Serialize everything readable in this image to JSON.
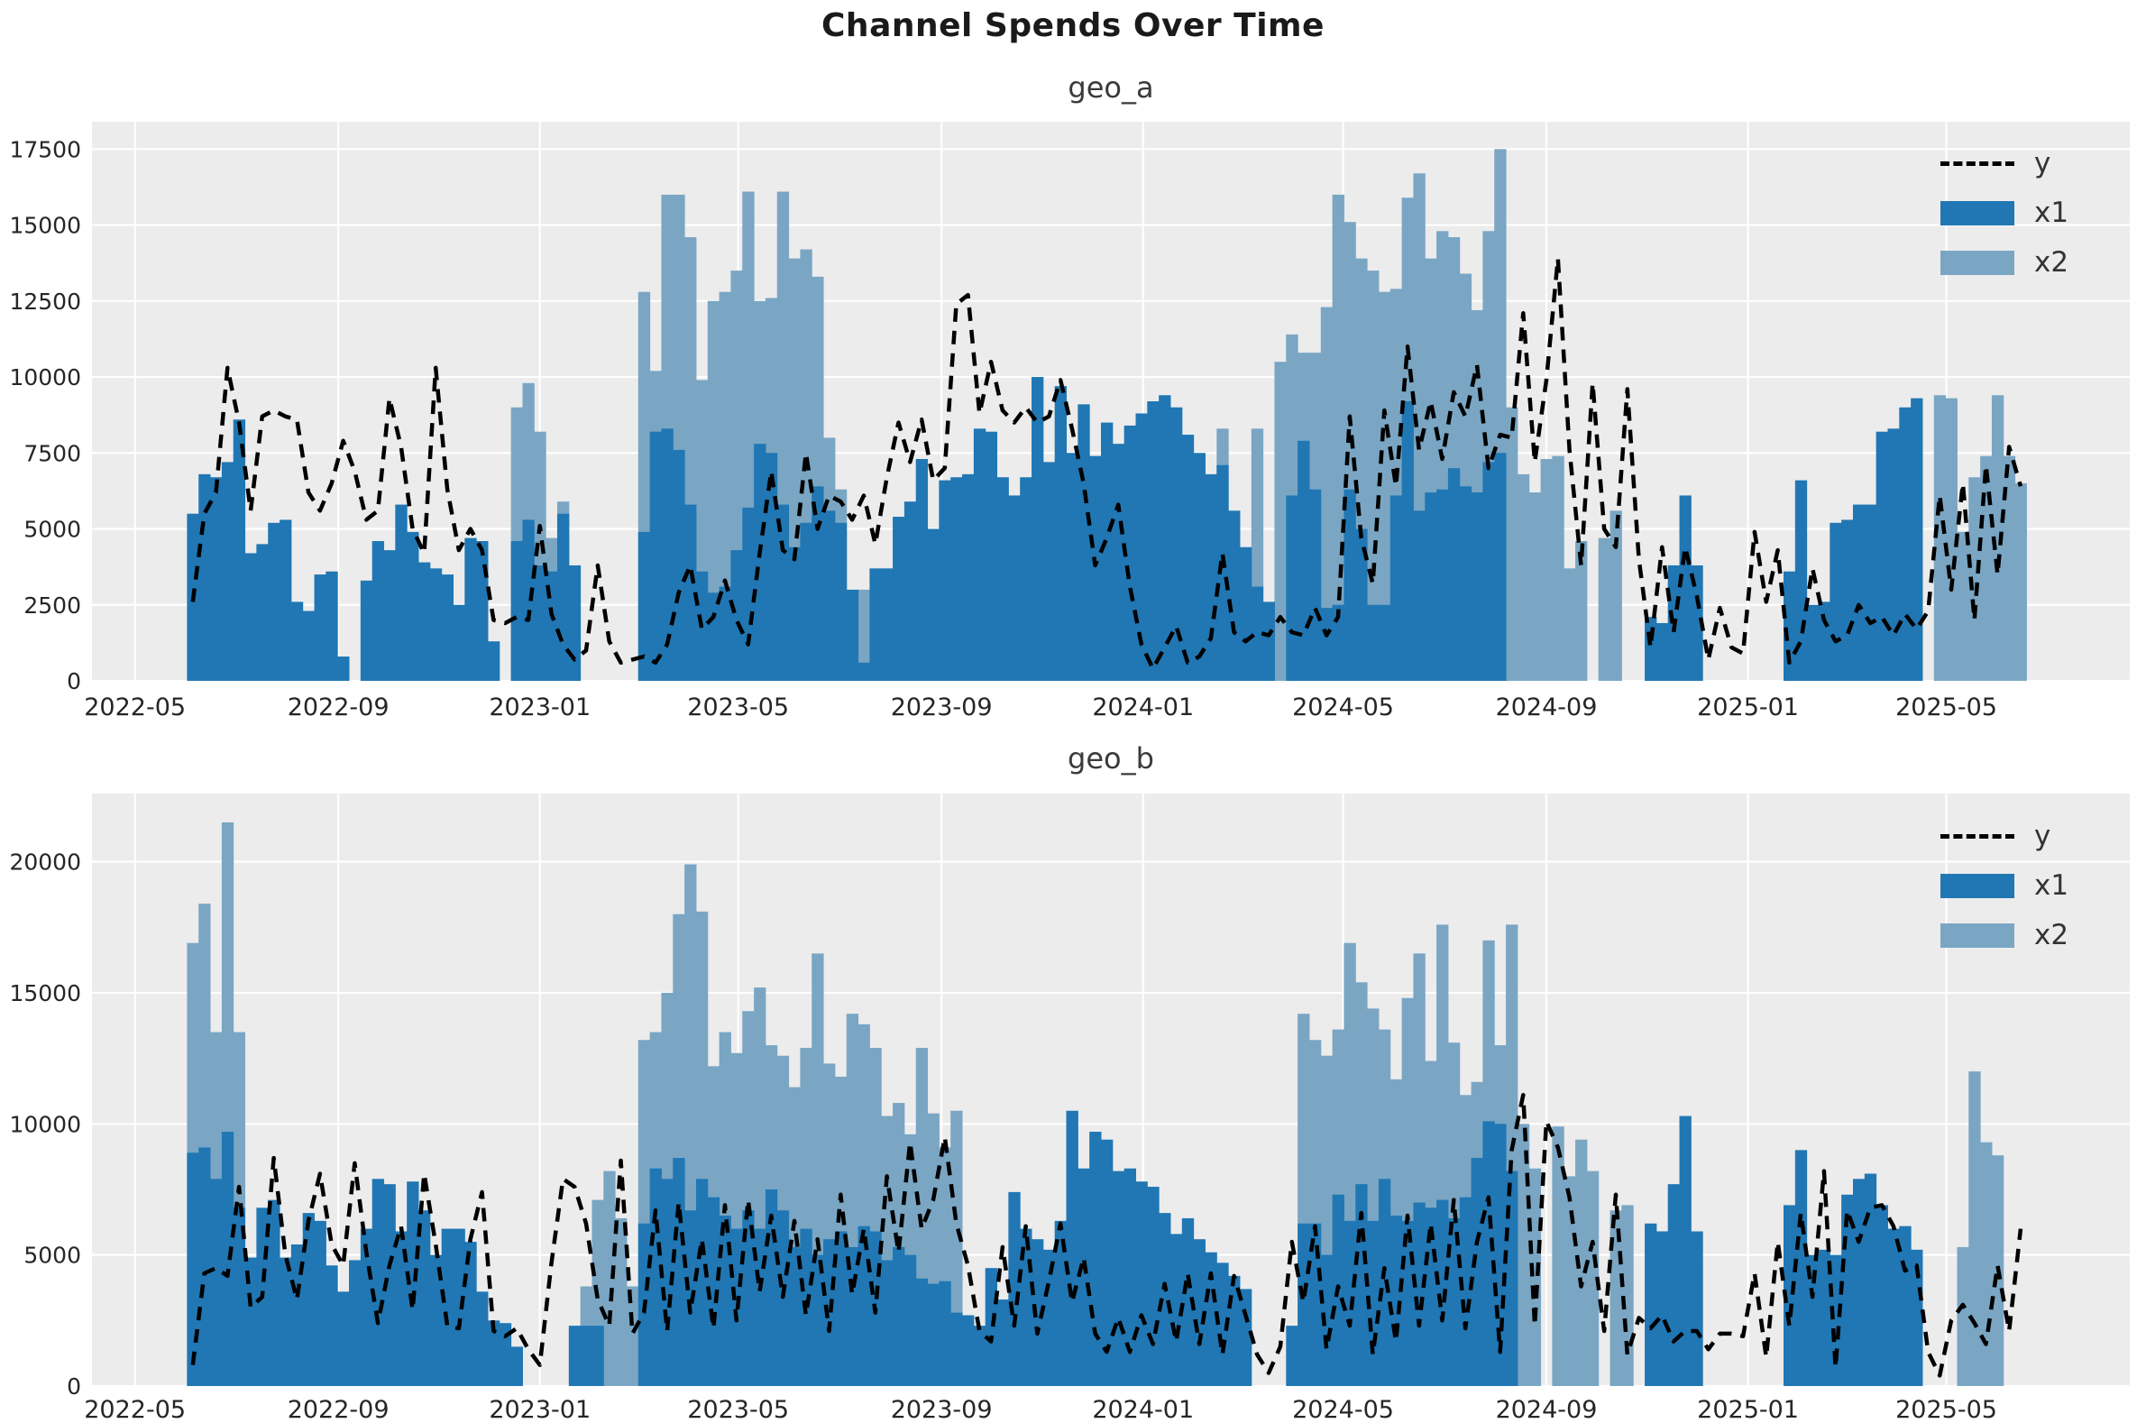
{
  "title": "Channel Spends Over Time",
  "legend": {
    "y": "y",
    "x1": "x1",
    "x2": "x2"
  },
  "colors": {
    "x1": "#2077b4",
    "x2": "#7aa6c4",
    "y_line": "#000000",
    "plot_bg": "#ececec",
    "grid": "#ffffff",
    "tick_text": "#262626"
  },
  "x_axis": {
    "tick_labels": [
      "2022-05",
      "2022-09",
      "2023-01",
      "2023-05",
      "2023-09",
      "2024-01",
      "2024-05",
      "2024-09",
      "2025-01",
      "2025-05"
    ],
    "tick_dates": [
      "2022-05-01",
      "2022-09-01",
      "2023-01-01",
      "2023-05-01",
      "2023-09-01",
      "2024-01-01",
      "2024-05-01",
      "2024-09-01",
      "2025-01-01",
      "2025-05-01"
    ],
    "domain": [
      "2022-04-05",
      "2025-08-20"
    ]
  },
  "series_start_date": "2022-06-05",
  "series_freq_days": 7,
  "chart_data": [
    {
      "type": "bar",
      "title": "geo_a",
      "ylim": [
        0,
        18400
      ],
      "y_ticks": [
        0,
        2500,
        5000,
        7500,
        10000,
        12500,
        15000,
        17500
      ],
      "y_tick_labels": [
        "0",
        "2500",
        "5000",
        "7500",
        "10000",
        "12500",
        "15000",
        "17500"
      ],
      "legend_position": "upper right",
      "grid": true,
      "series": [
        {
          "name": "y",
          "kind": "line",
          "values": [
            2600,
            5500,
            6200,
            10300,
            8500,
            5600,
            8700,
            8900,
            8700,
            8600,
            6200,
            5600,
            6500,
            7900,
            6900,
            5300,
            5600,
            9300,
            7700,
            5000,
            4200,
            10300,
            6300,
            4300,
            5000,
            4300,
            2000,
            1900,
            2100,
            2000,
            5100,
            2200,
            1200,
            700,
            1000,
            3800,
            1300,
            600,
            700,
            800,
            600,
            1200,
            2900,
            3800,
            1700,
            2100,
            3300,
            2000,
            1200,
            4200,
            6900,
            4300,
            4000,
            7500,
            5000,
            6100,
            5900,
            5300,
            6100,
            4500,
            6700,
            8500,
            7200,
            8600,
            6600,
            7000,
            12400,
            12700,
            8800,
            10500,
            8900,
            8500,
            9000,
            8500,
            8700,
            9900,
            8300,
            6500,
            3800,
            4700,
            5800,
            3100,
            1200,
            400,
            1100,
            1800,
            600,
            800,
            1400,
            4200,
            1600,
            1300,
            1600,
            1500,
            2100,
            1600,
            1500,
            2400,
            1500,
            2100,
            8700,
            4700,
            3200,
            8900,
            6400,
            11000,
            7600,
            9200,
            7300,
            9500,
            8700,
            10400,
            7000,
            8100,
            8000,
            12100,
            7200,
            9900,
            13900,
            7600,
            3800,
            9800,
            5000,
            4400,
            9600,
            4000,
            1100,
            4400,
            1600,
            4400,
            2800,
            700,
            2400,
            1100,
            900,
            4900,
            2600,
            4300,
            600,
            1300,
            3700,
            2000,
            1300,
            1500,
            2500,
            1900,
            2100,
            1500,
            2200,
            1700,
            2300,
            6100,
            3000,
            6500,
            2000,
            7100,
            3500,
            7700,
            6400
          ]
        },
        {
          "name": "x1",
          "kind": "bar",
          "values": [
            5500,
            6800,
            6700,
            7200,
            8600,
            4200,
            4500,
            5200,
            5300,
            2600,
            2300,
            3500,
            3600,
            800,
            0,
            3300,
            4600,
            4300,
            5800,
            4900,
            3900,
            3700,
            3500,
            2500,
            4700,
            4600,
            1300,
            0,
            4600,
            5300,
            3800,
            3600,
            5500,
            3800,
            0,
            0,
            0,
            0,
            0,
            4900,
            8200,
            8300,
            7600,
            5800,
            3600,
            2900,
            3100,
            4300,
            5700,
            7800,
            7500,
            5800,
            4400,
            5200,
            6400,
            5600,
            5200,
            3000,
            600,
            3700,
            3700,
            5400,
            5900,
            7300,
            5000,
            6600,
            6700,
            6800,
            8300,
            8200,
            6700,
            6100,
            6700,
            10000,
            7200,
            9700,
            7500,
            9100,
            7400,
            8500,
            7800,
            8400,
            8800,
            9200,
            9400,
            9000,
            8100,
            7500,
            6800,
            7100,
            5600,
            4400,
            3100,
            2600,
            0,
            6100,
            7900,
            6300,
            2400,
            2500,
            6300,
            5000,
            2500,
            2500,
            6100,
            9200,
            5600,
            6200,
            6300,
            7000,
            6400,
            6200,
            7200,
            7500,
            0,
            0,
            0,
            0,
            0,
            0,
            0,
            0,
            0,
            0,
            0,
            0,
            2100,
            1900,
            3800,
            6100,
            3800,
            0,
            0,
            0,
            0,
            0,
            0,
            0,
            3600,
            6600,
            2500,
            2600,
            5200,
            5300,
            5800,
            5800,
            8200,
            8300,
            9000,
            9300,
            0,
            0,
            0,
            0,
            0,
            0,
            0,
            0,
            0
          ]
        },
        {
          "name": "x2",
          "kind": "bar",
          "values": [
            0,
            0,
            0,
            0,
            0,
            0,
            0,
            0,
            0,
            0,
            0,
            0,
            0,
            0,
            0,
            0,
            0,
            0,
            0,
            0,
            0,
            0,
            0,
            0,
            0,
            0,
            0,
            0,
            9000,
            9800,
            8200,
            4700,
            5900,
            0,
            0,
            0,
            0,
            0,
            0,
            12800,
            10200,
            16000,
            16000,
            14600,
            9900,
            12500,
            12800,
            13500,
            16100,
            12500,
            12600,
            16100,
            13900,
            14200,
            13300,
            8000,
            6300,
            1500,
            3000,
            0,
            0,
            0,
            0,
            0,
            0,
            0,
            0,
            0,
            0,
            0,
            0,
            0,
            0,
            0,
            0,
            0,
            0,
            0,
            0,
            0,
            0,
            0,
            0,
            0,
            0,
            0,
            0,
            0,
            0,
            8300,
            0,
            0,
            8300,
            0,
            10500,
            11400,
            10800,
            10800,
            12300,
            16000,
            15100,
            13900,
            13500,
            12800,
            12900,
            15900,
            16700,
            13900,
            14800,
            14600,
            13400,
            12200,
            14800,
            17500,
            9000,
            6800,
            6200,
            7300,
            7400,
            3700,
            4600,
            0,
            4700,
            5600,
            0,
            0,
            0,
            0,
            0,
            0,
            0,
            0,
            0,
            0,
            0,
            0,
            0,
            0,
            0,
            0,
            0,
            0,
            0,
            0,
            0,
            0,
            0,
            0,
            0,
            0,
            0,
            9400,
            9300,
            4900,
            6700,
            7400,
            9400,
            7400,
            6500
          ]
        }
      ]
    },
    {
      "type": "bar",
      "title": "geo_b",
      "ylim": [
        0,
        22600
      ],
      "y_ticks": [
        0,
        5000,
        10000,
        15000,
        20000
      ],
      "y_tick_labels": [
        "0",
        "5000",
        "10000",
        "15000",
        "20000"
      ],
      "legend_position": "upper right",
      "grid": true,
      "series": [
        {
          "name": "y",
          "kind": "line",
          "values": [
            800,
            4300,
            4500,
            4200,
            7600,
            3000,
            3400,
            8700,
            5000,
            3300,
            6300,
            8100,
            5400,
            4600,
            8500,
            5100,
            2400,
            4600,
            6100,
            2900,
            8100,
            5400,
            2300,
            2200,
            5600,
            7400,
            2100,
            1900,
            2200,
            1400,
            800,
            4700,
            7900,
            7600,
            6200,
            3300,
            2300,
            8600,
            2000,
            2800,
            6700,
            2100,
            7000,
            2800,
            5600,
            2200,
            6900,
            2500,
            7100,
            3600,
            6500,
            3400,
            6300,
            2700,
            5600,
            2100,
            7300,
            3500,
            6000,
            2800,
            8000,
            5100,
            9300,
            6000,
            7100,
            9500,
            6200,
            4600,
            2100,
            1700,
            5300,
            2300,
            6100,
            2000,
            4000,
            6200,
            3200,
            4900,
            2000,
            1300,
            2600,
            1300,
            2700,
            1600,
            3900,
            1700,
            4300,
            1600,
            4300,
            1200,
            4200,
            2700,
            1200,
            500,
            1500,
            5500,
            3200,
            6100,
            1400,
            3800,
            2300,
            6600,
            1200,
            4500,
            1700,
            6500,
            2300,
            6200,
            2500,
            7100,
            2200,
            5500,
            7200,
            1300,
            9000,
            11100,
            2300,
            10100,
            9100,
            7200,
            3800,
            5500,
            2100,
            7300,
            1200,
            2600,
            2200,
            2700,
            1700,
            2100,
            2100,
            1400,
            2000,
            2000,
            1900,
            4300,
            1100,
            5500,
            2300,
            6600,
            3400,
            8200,
            700,
            6700,
            5500,
            6800,
            6900,
            6100,
            4400,
            4600,
            1300,
            400,
            2500,
            3100,
            2400,
            1600,
            4600,
            2100,
            6000
          ]
        },
        {
          "name": "x1",
          "kind": "bar",
          "values": [
            8900,
            9100,
            7900,
            9700,
            6800,
            4900,
            6800,
            7100,
            4900,
            5400,
            6600,
            6300,
            4600,
            3600,
            4800,
            6000,
            7900,
            7700,
            5900,
            7800,
            6700,
            5000,
            6000,
            6000,
            5500,
            3600,
            2500,
            2400,
            1500,
            0,
            0,
            0,
            0,
            2300,
            2300,
            2300,
            0,
            0,
            0,
            6200,
            8300,
            7900,
            8700,
            6700,
            7900,
            7200,
            6500,
            6000,
            6700,
            6000,
            7500,
            6700,
            5300,
            6000,
            5000,
            5600,
            5900,
            5300,
            6100,
            5900,
            4800,
            5300,
            5000,
            4100,
            3900,
            4000,
            2800,
            2700,
            2300,
            4500,
            3300,
            7400,
            6000,
            5600,
            5200,
            6300,
            10500,
            8300,
            9700,
            9400,
            8200,
            8300,
            7800,
            7600,
            6600,
            5800,
            6400,
            5600,
            5100,
            4700,
            4200,
            3700,
            0,
            0,
            0,
            2300,
            6200,
            6200,
            5000,
            7300,
            6300,
            7700,
            6300,
            7900,
            6500,
            6300,
            7000,
            6800,
            7100,
            6400,
            7200,
            8700,
            10100,
            10000,
            8200,
            0,
            0,
            0,
            0,
            0,
            0,
            0,
            0,
            0,
            0,
            0,
            6200,
            5900,
            7700,
            10300,
            5900,
            0,
            0,
            0,
            0,
            0,
            0,
            0,
            6900,
            9000,
            5000,
            5200,
            5000,
            7300,
            7900,
            8100,
            6900,
            6000,
            6100,
            5200,
            0,
            0,
            0,
            0,
            0,
            0,
            0,
            0,
            0
          ]
        },
        {
          "name": "x2",
          "kind": "bar",
          "values": [
            16900,
            18400,
            13500,
            21500,
            13500,
            0,
            0,
            0,
            0,
            0,
            0,
            0,
            0,
            0,
            0,
            0,
            0,
            0,
            0,
            0,
            0,
            0,
            0,
            0,
            0,
            0,
            0,
            0,
            0,
            0,
            0,
            0,
            0,
            0,
            3800,
            7100,
            8200,
            6400,
            3800,
            13200,
            13500,
            15000,
            18000,
            19900,
            18100,
            12200,
            13500,
            12700,
            14300,
            15200,
            13000,
            12600,
            11400,
            12900,
            16500,
            12300,
            11800,
            14200,
            13800,
            12900,
            10300,
            10800,
            9600,
            12900,
            10400,
            9100,
            10500,
            0,
            0,
            0,
            0,
            0,
            0,
            0,
            0,
            0,
            0,
            0,
            0,
            0,
            0,
            0,
            0,
            0,
            0,
            0,
            0,
            0,
            0,
            0,
            0,
            0,
            0,
            0,
            0,
            0,
            14200,
            13200,
            12600,
            13600,
            16900,
            15400,
            14400,
            13600,
            11700,
            14800,
            16500,
            12400,
            17600,
            13100,
            11100,
            11600,
            17000,
            13000,
            17600,
            10000,
            8300,
            0,
            9900,
            8000,
            9400,
            8200,
            0,
            6700,
            6900,
            0,
            0,
            0,
            0,
            0,
            0,
            0,
            0,
            0,
            0,
            0,
            0,
            0,
            0,
            0,
            0,
            0,
            0,
            0,
            0,
            0,
            0,
            0,
            0,
            0,
            0,
            0,
            0,
            5300,
            12000,
            9300,
            8800,
            0,
            0
          ]
        }
      ]
    }
  ]
}
